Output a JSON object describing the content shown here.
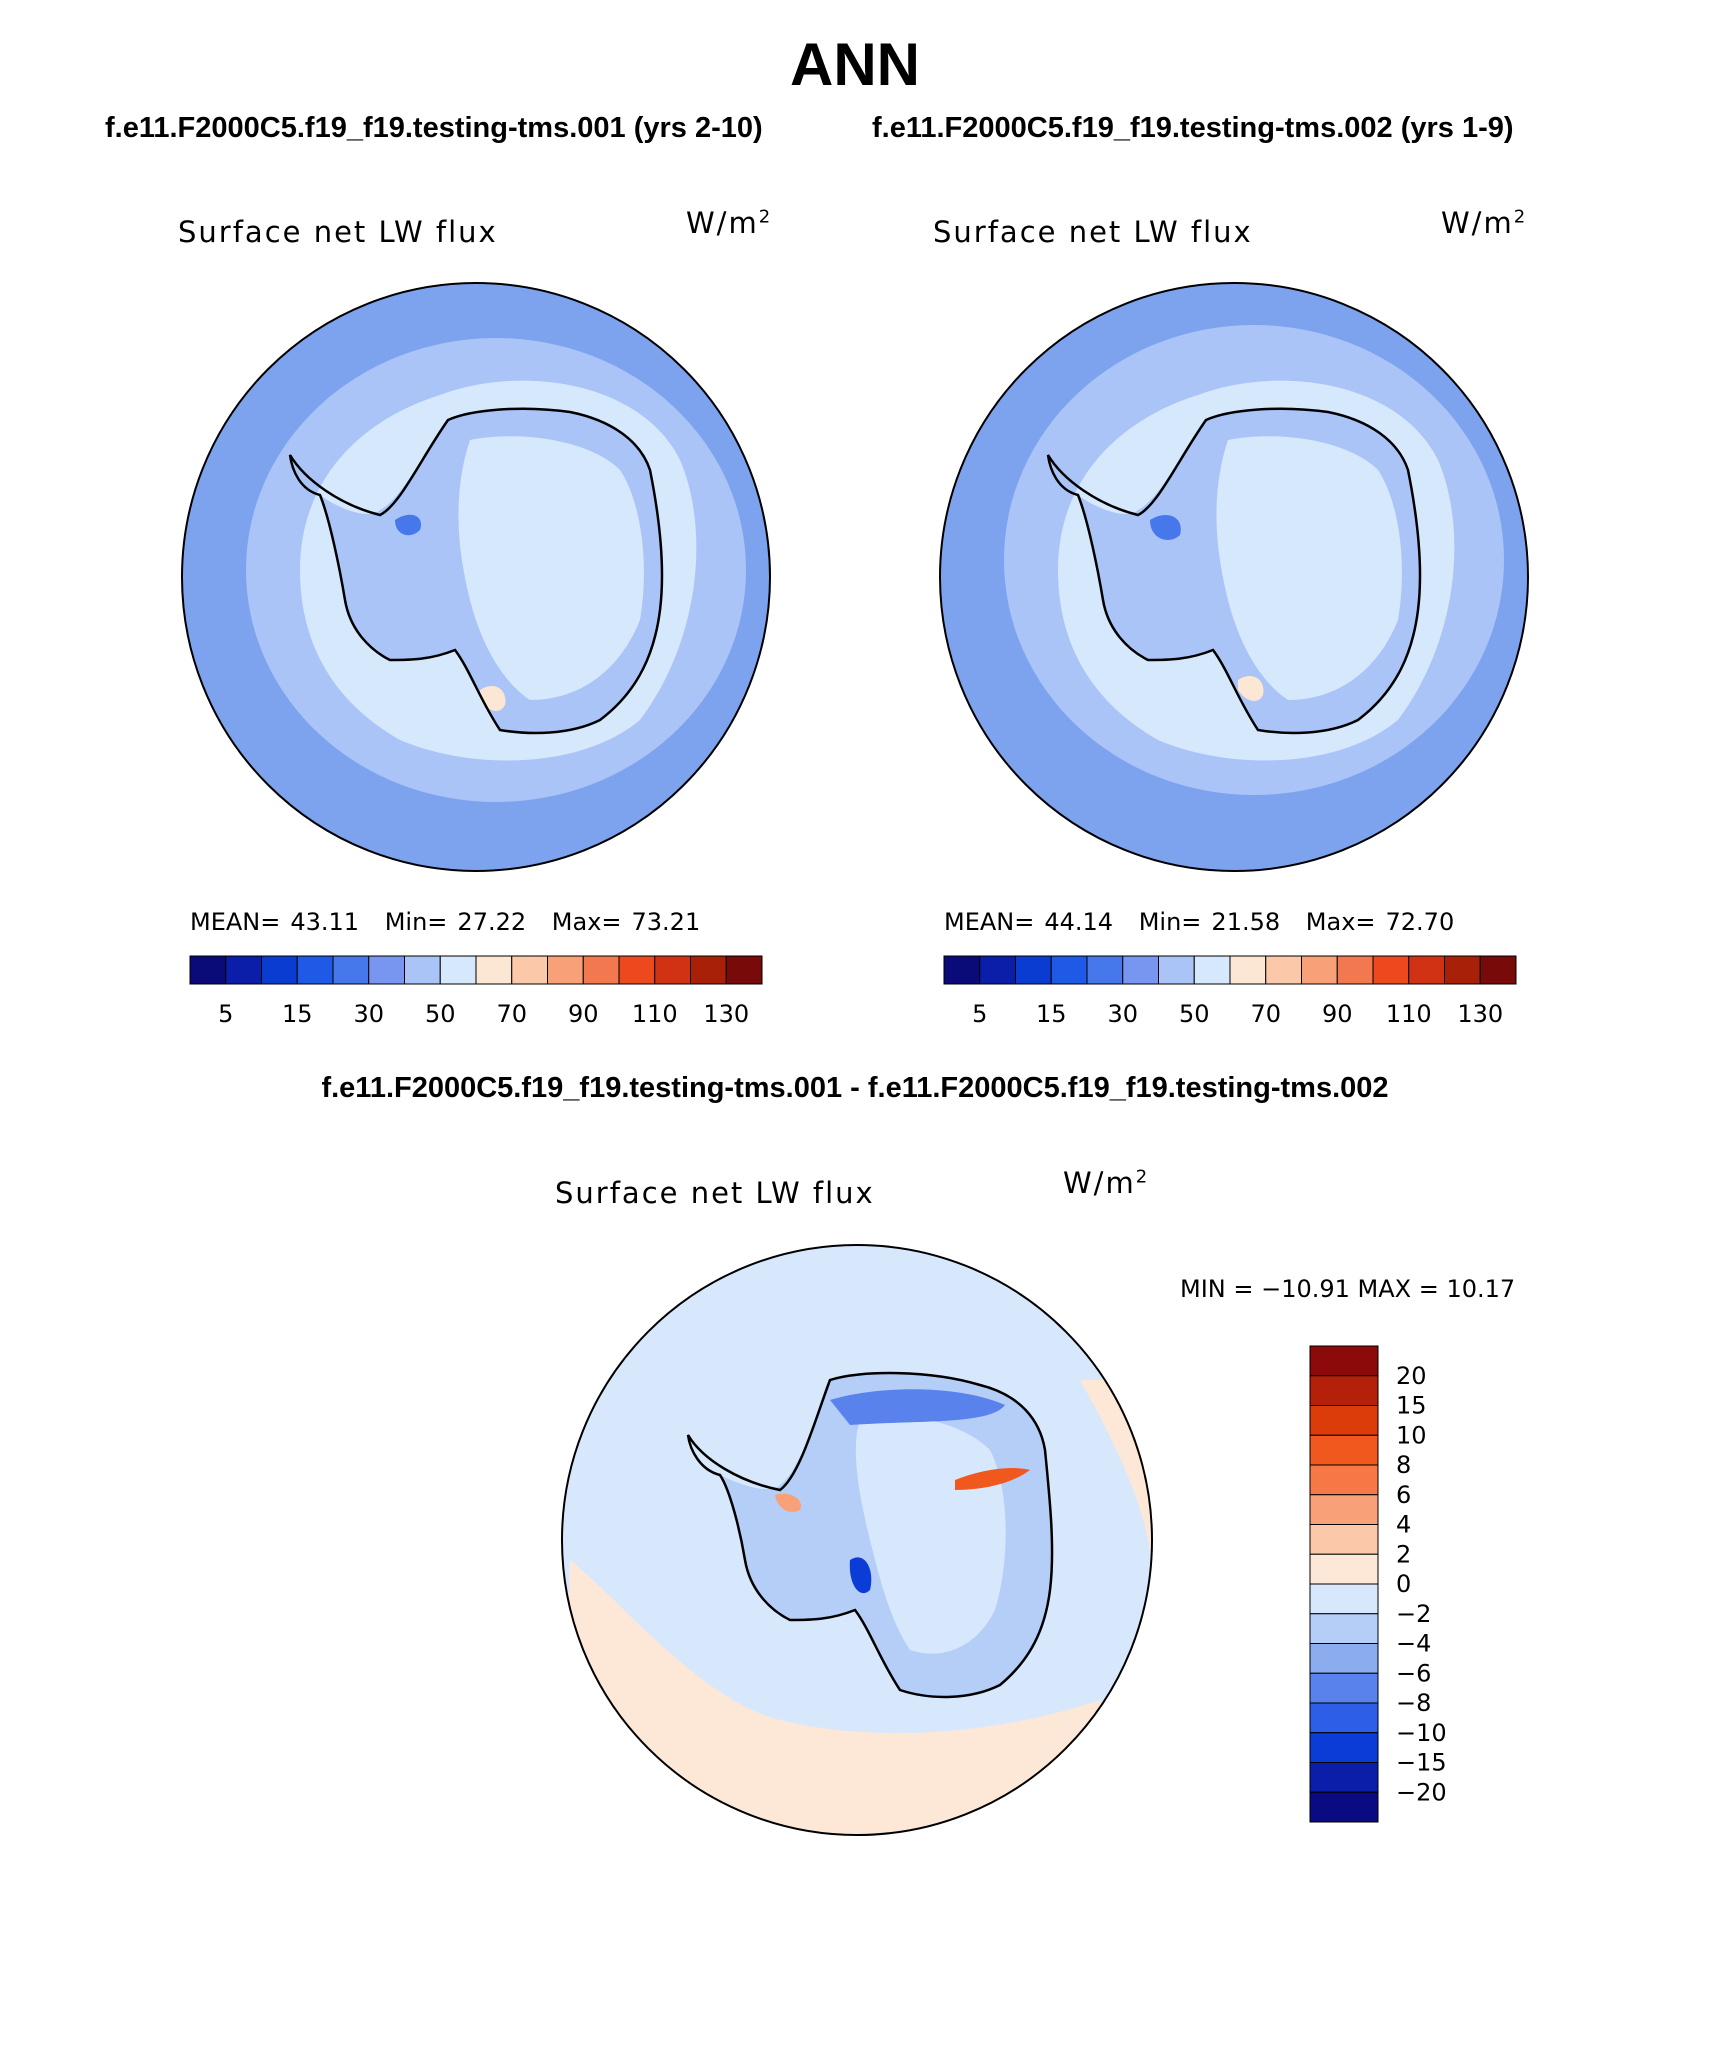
{
  "season": "ANN",
  "case1_title": "f.e11.F2000C5.f19_f19.testing-tms.001 (yrs 2-10)",
  "case2_title": "f.e11.F2000C5.f19_f19.testing-tms.002 (yrs 1-9)",
  "diff_title": "f.e11.F2000C5.f19_f19.testing-tms.001 - f.e11.F2000C5.f19_f19.testing-tms.002",
  "panels": [
    {
      "variable": "Surface net LW flux",
      "units": "W/m",
      "units_sup": "2",
      "mean_label": "MEAN=",
      "mean": "43.11",
      "min_label": "Min=",
      "min": "27.22",
      "max_label": "Max=",
      "max": "73.21"
    },
    {
      "variable": "Surface net LW flux",
      "units": "W/m",
      "units_sup": "2",
      "mean_label": "MEAN=",
      "mean": "44.14",
      "min_label": "Min=",
      "min": "21.58",
      "max_label": "Max=",
      "max": "72.70"
    },
    {
      "variable": "Surface net LW flux",
      "units": "W/m",
      "units_sup": "2",
      "minmax_text": "MIN = −10.91  MAX =   10.17"
    }
  ],
  "chart_data": [
    {
      "type": "heatmap",
      "title": "Surface net LW flux",
      "projection": "south polar stereographic",
      "region": "Antarctica",
      "units": "W/m2",
      "mean": 43.11,
      "min": 27.22,
      "max": 73.21,
      "colorbar_ticks": [
        "5",
        "15",
        "30",
        "50",
        "70",
        "90",
        "110",
        "130"
      ],
      "colorbar_colors": [
        "#0a0a78",
        "#0a1eaa",
        "#0a3cd2",
        "#1e5ae6",
        "#4678eb",
        "#7896f0",
        "#aac4f8",
        "#d6e8fc",
        "#fce6d4",
        "#fbc8aa",
        "#f8a078",
        "#f27850",
        "#ec4a1e",
        "#d23214",
        "#a82008",
        "#780a0a"
      ]
    },
    {
      "type": "heatmap",
      "title": "Surface net LW flux",
      "projection": "south polar stereographic",
      "region": "Antarctica",
      "units": "W/m2",
      "mean": 44.14,
      "min": 21.58,
      "max": 72.7,
      "colorbar_ticks": [
        "5",
        "15",
        "30",
        "50",
        "70",
        "90",
        "110",
        "130"
      ],
      "colorbar_colors": [
        "#0a0a78",
        "#0a1eaa",
        "#0a3cd2",
        "#1e5ae6",
        "#4678eb",
        "#7896f0",
        "#aac4f8",
        "#d6e8fc",
        "#fce6d4",
        "#fbc8aa",
        "#f8a078",
        "#f27850",
        "#ec4a1e",
        "#d23214",
        "#a82008",
        "#780a0a"
      ]
    },
    {
      "type": "heatmap",
      "title": "Surface net LW flux (difference)",
      "projection": "south polar stereographic",
      "region": "Antarctica",
      "units": "W/m2",
      "min": -10.91,
      "max": 10.17,
      "colorbar_ticks": [
        "20",
        "15",
        "10",
        "8",
        "6",
        "4",
        "2",
        "0",
        "−2",
        "−4",
        "−6",
        "−8",
        "−10",
        "−15",
        "−20"
      ],
      "colorbar_colors": [
        "#8c0a0a",
        "#b4200a",
        "#dc3c0a",
        "#f0581e",
        "#f57846",
        "#f8a078",
        "#fbc8aa",
        "#fde8d8",
        "#d8e8fc",
        "#b4cef8",
        "#8cacf0",
        "#5a82ec",
        "#2c5ee8",
        "#0c3cd6",
        "#0a1eaa",
        "#0a0a82"
      ]
    }
  ]
}
